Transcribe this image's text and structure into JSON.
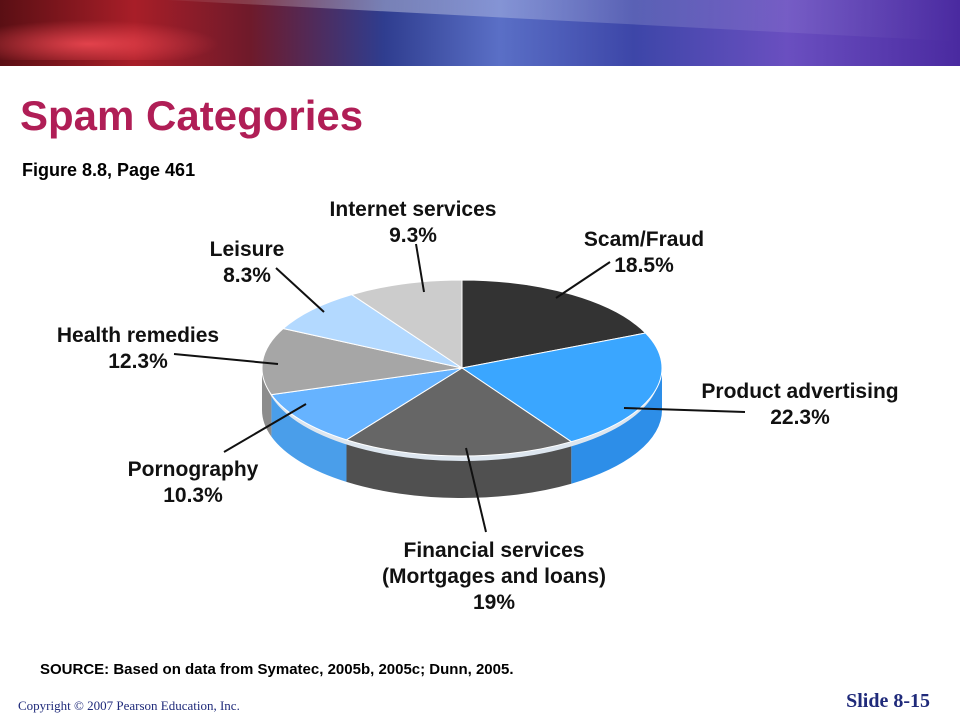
{
  "slide": {
    "title": "Spam Categories",
    "subtitle": "Figure 8.8, Page 461",
    "source": "SOURCE: Based on data from Symatec, 2005b, 2005c; Dunn, 2005.",
    "copyright": "Copyright © 2007 Pearson Education, Inc.",
    "slide_number": "Slide 8-15"
  },
  "chart_data": {
    "type": "pie",
    "title": "",
    "slices": [
      {
        "label_lines": [
          "Scam/Fraud",
          "18.5%"
        ],
        "category": "Scam/Fraud",
        "value": 18.5,
        "color": "#333333",
        "side_color": "#1a1a1a"
      },
      {
        "label_lines": [
          "Product advertising",
          "22.3%"
        ],
        "category": "Product advertising",
        "value": 22.3,
        "color": "#3aa6ff",
        "side_color": "#2d8ee8"
      },
      {
        "label_lines": [
          "Financial services",
          "(Mortgages and loans)",
          "19%"
        ],
        "category": "Financial services (Mortgages and loans)",
        "value": 19,
        "color": "#666666",
        "side_color": "#505050"
      },
      {
        "label_lines": [
          "Pornography",
          "10.3%"
        ],
        "category": "Pornography",
        "value": 10.3,
        "color": "#66b3ff",
        "side_color": "#4a9eea"
      },
      {
        "label_lines": [
          "Health remedies",
          "12.3%"
        ],
        "category": "Health remedies",
        "value": 12.3,
        "color": "#a6a6a6",
        "side_color": "#8c8c8c"
      },
      {
        "label_lines": [
          "Leisure",
          "8.3%"
        ],
        "category": "Leisure",
        "value": 8.3,
        "color": "#b3d9ff",
        "side_color": "#99c7f2"
      },
      {
        "label_lines": [
          "Internet services",
          "9.3%"
        ],
        "category": "Internet services",
        "value": 9.3,
        "color": "#cccccc",
        "side_color": "#b3b3b3"
      }
    ]
  }
}
